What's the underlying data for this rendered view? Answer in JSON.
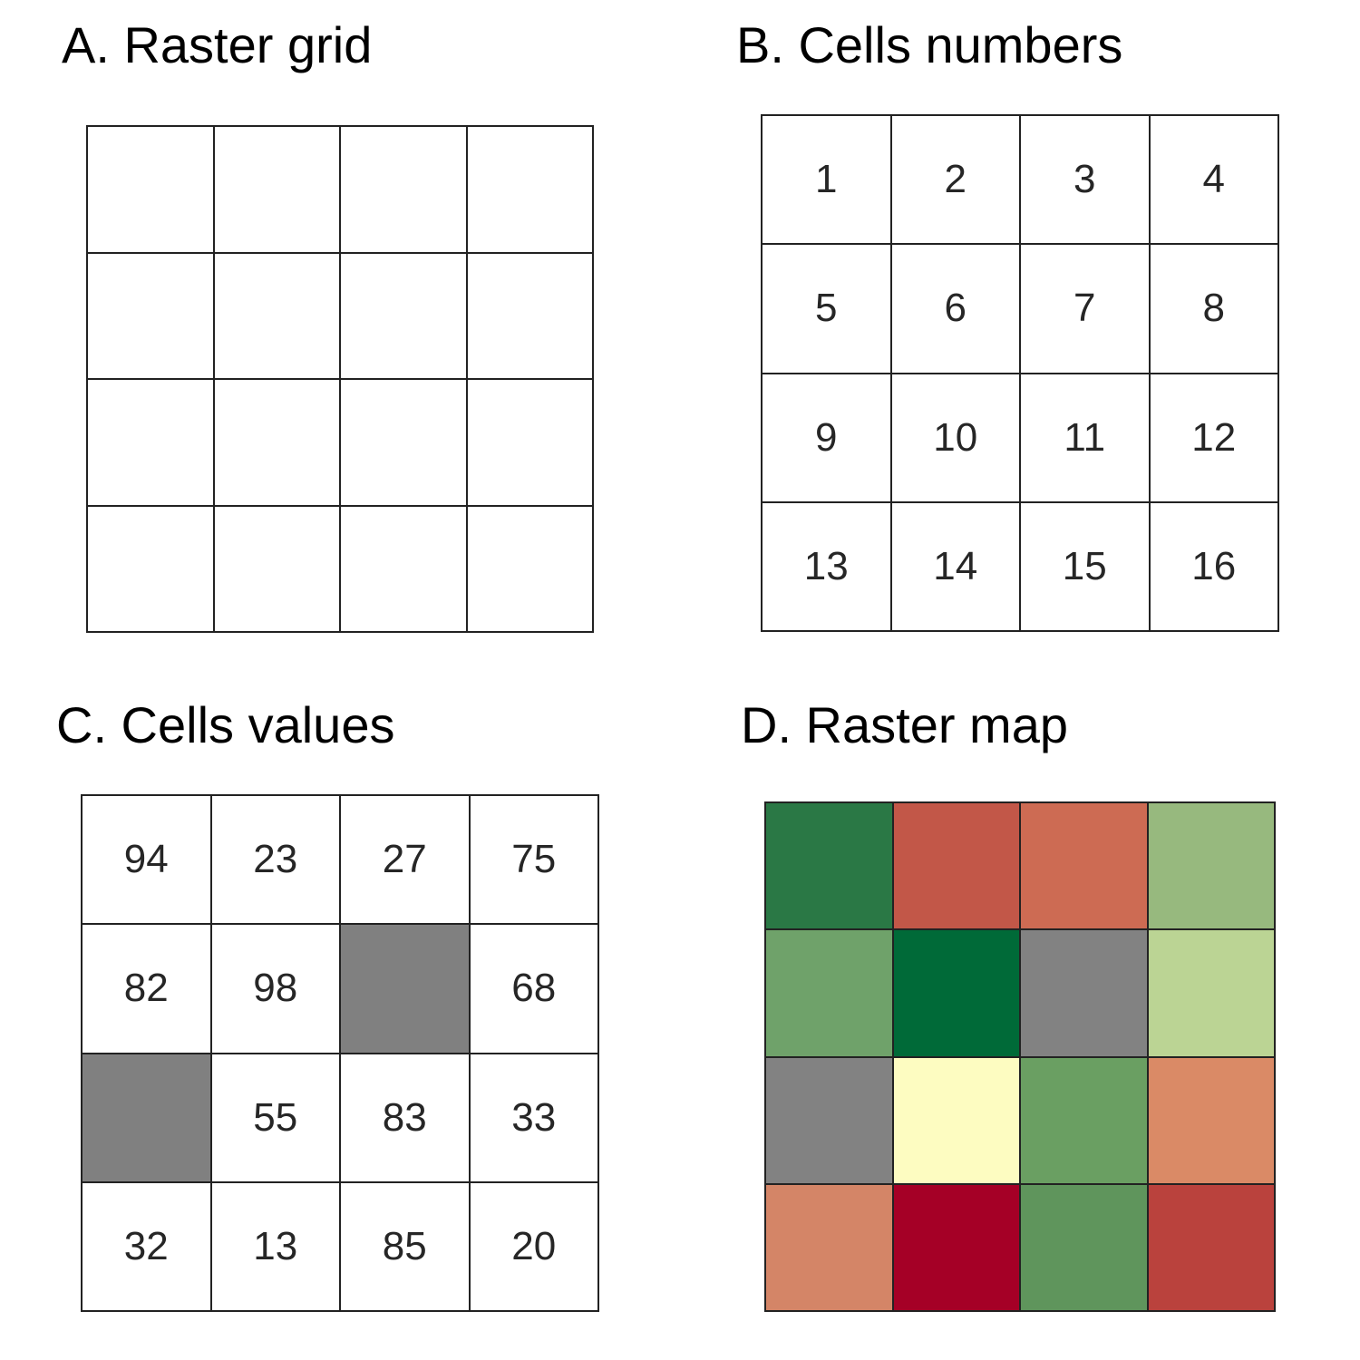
{
  "panels": {
    "raster_grid": {
      "title": "A. Raster grid",
      "rows": 4,
      "cols": 4
    },
    "cells_numbers": {
      "title": "B. Cells numbers",
      "cells": [
        "1",
        "2",
        "3",
        "4",
        "5",
        "6",
        "7",
        "8",
        "9",
        "10",
        "11",
        "12",
        "13",
        "14",
        "15",
        "16"
      ]
    },
    "cells_values": {
      "title": "C. Cells values",
      "cells": [
        "94",
        "23",
        "27",
        "75",
        "82",
        "98",
        null,
        "68",
        null,
        "55",
        "83",
        "33",
        "32",
        "13",
        "85",
        "20"
      ],
      "na_color": "#808080"
    },
    "raster_map": {
      "title": "D. Raster map",
      "colors": [
        "#2a7845",
        "#c25748",
        "#cd6b53",
        "#97b97e",
        "#6fa26a",
        "#006a38",
        "#828282",
        "#bbd494",
        "#828282",
        "#fdfcc1",
        "#6a9f62",
        "#da8a66",
        "#d48567",
        "#a50026",
        "#5f955c",
        "#ba423d"
      ]
    }
  }
}
